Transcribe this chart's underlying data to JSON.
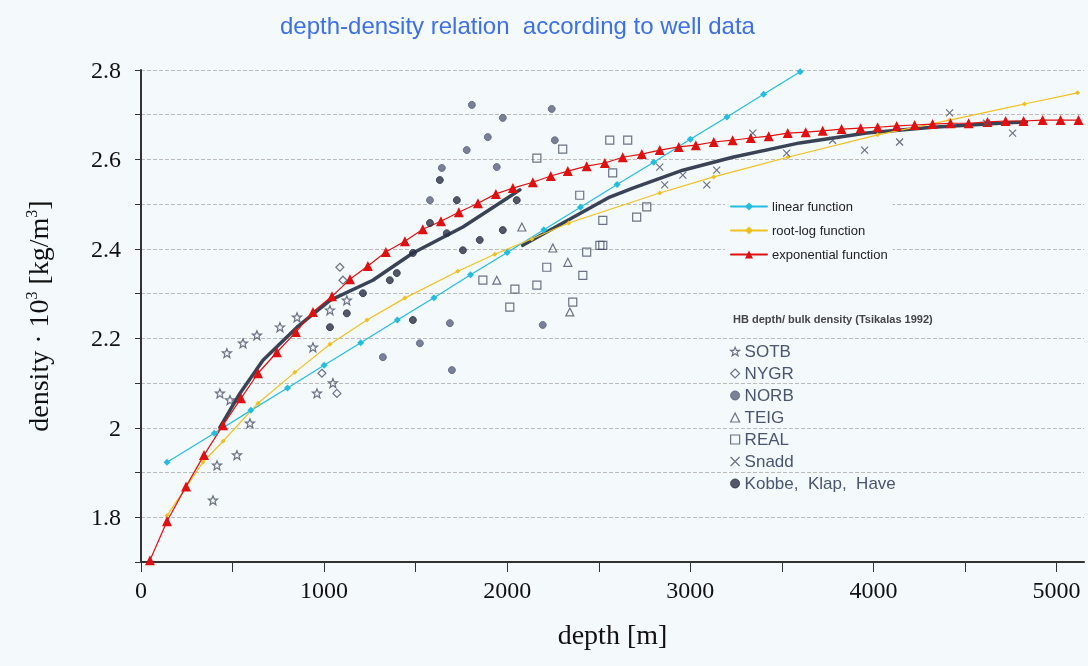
{
  "chart_data": {
    "type": "scatter",
    "title": "depth-density relation  according to well data",
    "xlabel": "depth [m]",
    "ylabel": "density · 10$^{3}$ [kg/m$^{3}$]",
    "legend_title": "HB depth/ bulk density (Tsikalas 1992)",
    "xlim": [
      0,
      5150
    ],
    "ylim": [
      1.7,
      2.8
    ],
    "xticks": [
      0,
      {
        "value": 500,
        "label": null
      },
      1000,
      {
        "value": 1500,
        "label": null
      },
      2000,
      {
        "value": 2500,
        "label": null
      },
      3000,
      {
        "value": 3500,
        "label": null
      },
      4000,
      {
        "value": 4500,
        "label": null
      },
      5000
    ],
    "yticks": [
      {
        "value": 1.7,
        "label": null
      },
      1.8,
      {
        "value": 1.9,
        "label": null
      },
      2.0,
      {
        "value": 2.1,
        "label": null
      },
      2.2,
      {
        "value": 2.3,
        "label": null
      },
      2.4,
      {
        "value": 2.5,
        "label": null
      },
      2.6,
      {
        "value": 2.7,
        "label": null
      },
      2.8
    ],
    "grid": "y",
    "legend": "right",
    "series": [
      {
        "type": "line",
        "name": "linear function",
        "color": "#22bde0",
        "marker": "diamond",
        "x": [
          142,
          400,
          600,
          800,
          1000,
          1200,
          1400,
          1600,
          1800,
          2000,
          2200,
          2400,
          2600,
          2800,
          3000,
          3200,
          3400,
          3600
        ],
        "values": [
          1.923,
          1.988,
          2.039,
          2.089,
          2.14,
          2.19,
          2.241,
          2.291,
          2.342,
          2.392,
          2.443,
          2.493,
          2.544,
          2.594,
          2.645,
          2.695,
          2.746,
          2.796
        ]
      },
      {
        "type": "line",
        "name": "root-log function",
        "color": "#f0c020",
        "marker": "diamond",
        "x": [
          142,
          338,
          448,
          639,
          840,
          1032,
          1234,
          1441,
          1730,
          1932,
          2134,
          2336,
          2833,
          3128,
          3532,
          4023,
          4416,
          4825,
          5115
        ],
        "values": [
          1.804,
          1.923,
          1.97,
          2.055,
          2.124,
          2.187,
          2.241,
          2.29,
          2.35,
          2.388,
          2.422,
          2.458,
          2.525,
          2.561,
          2.605,
          2.655,
          2.688,
          2.724,
          2.749
        ]
      },
      {
        "type": "line",
        "name": "exponential function",
        "color": "#e01010",
        "marker": "triangle",
        "x": [
          49,
          142,
          246,
          344,
          448,
          546,
          639,
          742,
          846,
          939,
          1043,
          1141,
          1239,
          1337,
          1441,
          1539,
          1638,
          1736,
          1840,
          1938,
          2031,
          2140,
          2238,
          2331,
          2434,
          2533,
          2631,
          2735,
          2833,
          2937,
          3030,
          3128,
          3231,
          3330,
          3428,
          3532,
          3630,
          3723,
          3826,
          3930,
          4023,
          4127,
          4225,
          4323,
          4421,
          4520,
          4623,
          4722,
          4820,
          4924,
          5022,
          5120
        ],
        "values": [
          1.704,
          1.791,
          1.869,
          1.939,
          2.006,
          2.066,
          2.122,
          2.169,
          2.214,
          2.259,
          2.294,
          2.332,
          2.362,
          2.393,
          2.417,
          2.444,
          2.462,
          2.482,
          2.502,
          2.523,
          2.536,
          2.549,
          2.563,
          2.574,
          2.585,
          2.592,
          2.605,
          2.612,
          2.621,
          2.628,
          2.632,
          2.639,
          2.643,
          2.648,
          2.652,
          2.659,
          2.661,
          2.664,
          2.668,
          2.67,
          2.672,
          2.675,
          2.677,
          2.679,
          2.681,
          2.681,
          2.684,
          2.686,
          2.686,
          2.688,
          2.688,
          2.688
        ]
      },
      {
        "type": "line",
        "color": "#3a4255",
        "marker": "none",
        "x": [
          431,
          540,
          666,
          852,
          1032,
          1266,
          1485,
          1758,
          2069,
          2077,
          2085,
          2560,
          2686,
          2959,
          3231,
          3597,
          3963,
          4323,
          4689,
          4836
        ],
        "values": [
          2.001,
          2.077,
          2.151,
          2.225,
          2.285,
          2.33,
          2.391,
          2.449,
          2.532,
          null,
          2.408,
          2.516,
          2.536,
          2.576,
          2.605,
          2.637,
          2.659,
          2.672,
          2.681,
          2.684
        ]
      },
      {
        "name": "SOTB",
        "color": "#4a5068",
        "marker": "star",
        "x": [
          469,
          557,
          633,
          431,
          486,
          415,
          393,
          524,
          595,
          961,
          1048,
          759,
          852,
          1032,
          1124,
          939
        ],
        "values": [
          2.167,
          2.189,
          2.207,
          2.077,
          2.062,
          1.916,
          1.838,
          1.939,
          2.01,
          2.077,
          2.1,
          2.225,
          2.247,
          2.263,
          2.285,
          2.18
        ]
      },
      {
        "name": "NYGR",
        "color": "#4a5068",
        "marker": "diamond",
        "x": [
          1086,
          988,
          1070,
          1103
        ],
        "values": [
          2.359,
          2.122,
          2.077,
          2.33
        ]
      },
      {
        "name": "NORB",
        "color": "#5a6280",
        "marker": "circle",
        "x": [
          1807,
          1976,
          1894,
          1779,
          1643,
          1687,
          1698,
          1321,
          2194,
          2243,
          2260,
          1523,
          1578,
          1943
        ],
        "values": [
          2.722,
          2.693,
          2.65,
          2.621,
          2.581,
          2.234,
          2.129,
          2.158,
          2.23,
          2.713,
          2.643,
          2.189,
          2.509,
          2.583
        ]
      },
      {
        "name": "TEIG",
        "color": "#4a5068",
        "marker": "triangle",
        "x": [
          1943,
          2342,
          2331,
          2249,
          2080
        ],
        "values": [
          2.33,
          2.259,
          2.37,
          2.402,
          2.449
        ]
      },
      {
        "name": "REAL",
        "color": "#4a5068",
        "marker": "square",
        "x": [
          1867,
          2014,
          2042,
          2162,
          2216,
          2358,
          2413,
          2434,
          2303,
          2162,
          2396,
          2506,
          2522,
          2560,
          2658,
          2576,
          2707,
          2762,
          2522
        ],
        "values": [
          2.33,
          2.27,
          2.31,
          2.319,
          2.359,
          2.281,
          2.341,
          2.393,
          2.623,
          2.603,
          2.52,
          2.408,
          2.464,
          2.643,
          2.643,
          2.57,
          2.471,
          2.494,
          2.408
        ]
      },
      {
        "name": "Snadd",
        "color": "#4a5068",
        "marker": "cross",
        "x": [
          2833,
          2860,
          3090,
          3144,
          3341,
          3526,
          3777,
          3952,
          4143,
          4416,
          4760,
          4618,
          2959
        ],
        "values": [
          2.583,
          2.543,
          2.543,
          2.576,
          2.659,
          2.614,
          2.643,
          2.621,
          2.639,
          2.704,
          2.659,
          2.681,
          2.565
        ]
      },
      {
        "name": "Kobbe,  Klap,  Have",
        "color": "#2a3045",
        "marker": "circle",
        "x": [
          1212,
          1397,
          1485,
          1670,
          1758,
          1850,
          1578,
          1359,
          1124,
          1032,
          1485,
          1976,
          2052,
          1725,
          1632
        ],
        "values": [
          2.301,
          2.346,
          2.391,
          2.435,
          2.397,
          2.42,
          2.458,
          2.33,
          2.256,
          2.225,
          2.241,
          2.442,
          2.509,
          2.509,
          2.554
        ]
      }
    ]
  }
}
